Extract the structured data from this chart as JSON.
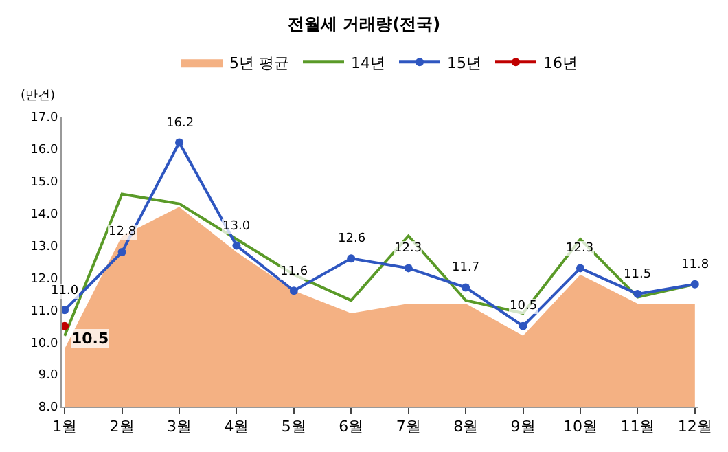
{
  "chart_data": {
    "type": "line",
    "title": "전월세 거래량(전국)",
    "ylabel": "(만건)",
    "categories": [
      "1월",
      "2월",
      "3월",
      "4월",
      "5월",
      "6월",
      "7월",
      "8월",
      "9월",
      "10월",
      "11월",
      "12월"
    ],
    "ylim": [
      8,
      17
    ],
    "yticks": [
      {
        "value": 8,
        "label": "8.0"
      },
      {
        "value": 9,
        "label": "9.0"
      },
      {
        "value": 10,
        "label": "10.0"
      },
      {
        "value": 11,
        "label": "11.0"
      },
      {
        "value": 12,
        "label": "12.0"
      },
      {
        "value": 13,
        "label": "13.0"
      },
      {
        "value": 14,
        "label": "14.0"
      },
      {
        "value": 15,
        "label": "15.0"
      },
      {
        "value": 16,
        "label": "16.0"
      },
      {
        "value": 17,
        "label": "17.0"
      }
    ],
    "legend": "top",
    "marker": "none",
    "series": [
      {
        "name": "5년 평균",
        "type": "area",
        "color": "#f4b183",
        "values": [
          9.8,
          13.3,
          14.2,
          12.8,
          11.6,
          10.9,
          11.2,
          11.2,
          10.2,
          12.1,
          11.2,
          11.2
        ]
      },
      {
        "name": "14년",
        "color": "#5a9a28",
        "values": [
          10.2,
          14.6,
          14.3,
          13.2,
          12.1,
          11.3,
          13.3,
          11.3,
          10.9,
          13.2,
          11.4,
          11.8
        ]
      },
      {
        "name": "15년",
        "color": "#2e56c0",
        "marker": "circle",
        "values": [
          11.0,
          12.8,
          16.2,
          13.0,
          11.6,
          12.6,
          12.3,
          11.7,
          10.5,
          12.3,
          11.5,
          11.8
        ],
        "value_labels": [
          "11.0",
          "12.8",
          "16.2",
          "13.0",
          "11.6",
          "12.6",
          "12.3",
          "11.7",
          "10.5",
          "12.3",
          "11.5",
          "11.8"
        ]
      },
      {
        "name": "16년",
        "color": "#c00000",
        "marker": "circle",
        "values": [
          10.5,
          null,
          null,
          null,
          null,
          null,
          null,
          null,
          null,
          null,
          null,
          null
        ],
        "value_labels": [
          "10.5",
          null,
          null,
          null,
          null,
          null,
          null,
          null,
          null,
          null,
          null,
          null
        ]
      }
    ]
  }
}
